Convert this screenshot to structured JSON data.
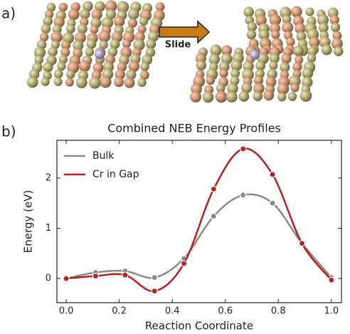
{
  "panel_labels": [
    "a)",
    "b)"
  ],
  "annotation": "Slide",
  "chart_data": {
    "type": "line",
    "title": "Combined NEB Energy Profiles",
    "xlabel": "Reaction Coordinate",
    "ylabel": "Energy (eV)",
    "x": [
      0,
      0.111,
      0.222,
      0.333,
      0.444,
      0.556,
      0.667,
      0.778,
      0.889,
      1.0
    ],
    "series": [
      {
        "name": "Bulk",
        "color": "#8a8a8a",
        "values": [
          0,
          0.12,
          0.15,
          0.02,
          0.4,
          1.24,
          1.66,
          1.5,
          0.7,
          0.02
        ]
      },
      {
        "name": "Cr in Gap",
        "color": "#b22222",
        "values": [
          0,
          0.05,
          0.07,
          -0.25,
          0.3,
          1.78,
          2.58,
          2.07,
          0.7,
          -0.03
        ]
      }
    ],
    "xlim": [
      -0.035,
      1.038
    ],
    "ylim": [
      -0.48,
      2.75
    ],
    "xticks": [
      {
        "value": 0,
        "label": "0.0"
      },
      0.2,
      0.4,
      0.6,
      0.8,
      {
        "value": 1,
        "label": "1.0"
      }
    ],
    "yticks": [
      0,
      1,
      2
    ],
    "legend": "upper left",
    "smooth": true
  }
}
